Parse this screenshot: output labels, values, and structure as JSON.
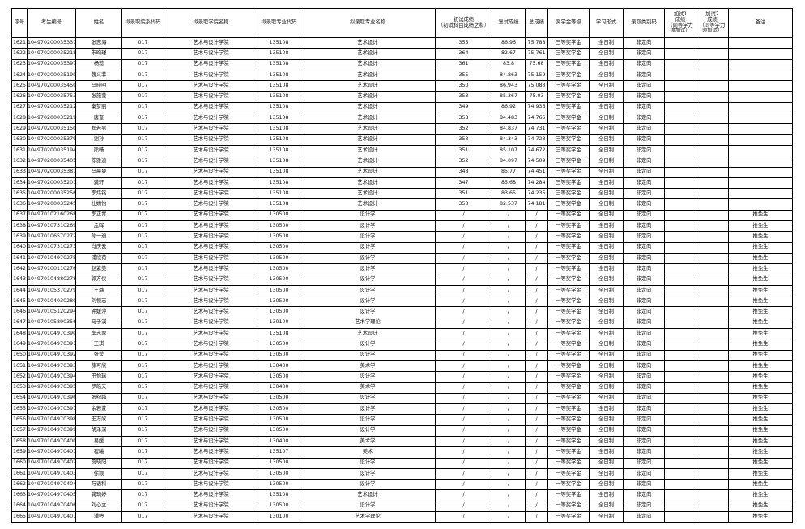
{
  "headers": [
    "序号",
    "考生编号",
    "姓名",
    "拟录取院系代码",
    "拟录取学院名称",
    "拟录取专业代码",
    "拟录取专业名称",
    "初试成绩\n（初试科目成绩之和）",
    "复试成绩",
    "总成绩",
    "奖学金等级",
    "学习形式",
    "录取类别码",
    "加试1\n成绩\n（同等学力\n须加试）",
    "加试2\n成绩\n（同等学力\n须加试）",
    "备注"
  ],
  "rows": [
    [
      "1621",
      "104970200035331",
      "张志海",
      "017",
      "艺术与设计学院",
      "135108",
      "艺术设计",
      "355",
      "86.96",
      "75.788",
      "三等奖学金",
      "全日制",
      "非定向",
      "",
      "",
      ""
    ],
    [
      "1622",
      "104970200035218",
      "朱昀瑾",
      "017",
      "艺术与设计学院",
      "135108",
      "艺术设计",
      "364",
      "82.67",
      "75.761",
      "三等奖学金",
      "全日制",
      "非定向",
      "",
      "",
      ""
    ],
    [
      "1623",
      "104970200035397",
      "杨蕊",
      "017",
      "艺术与设计学院",
      "135108",
      "艺术设计",
      "361",
      "83.8",
      "75.68",
      "三等奖学金",
      "全日制",
      "非定向",
      "",
      "",
      ""
    ],
    [
      "1624",
      "104970200035190",
      "魏义菲",
      "017",
      "艺术与设计学院",
      "135108",
      "艺术设计",
      "355",
      "84.863",
      "75.159",
      "三等奖学金",
      "全日制",
      "非定向",
      "",
      "",
      ""
    ],
    [
      "1625",
      "104970200035450",
      "马晓明",
      "017",
      "艺术与设计学院",
      "135108",
      "艺术设计",
      "350",
      "86.943",
      "75.083",
      "三等奖学金",
      "全日制",
      "非定向",
      "",
      "",
      ""
    ],
    [
      "1626",
      "104970200035753",
      "张施莹",
      "017",
      "艺术与设计学院",
      "135108",
      "艺术设计",
      "353",
      "85.367",
      "75.03",
      "三等奖学金",
      "全日制",
      "非定向",
      "",
      "",
      ""
    ],
    [
      "1627",
      "104970200035212",
      "秦梦丽",
      "017",
      "艺术与设计学院",
      "135108",
      "艺术设计",
      "349",
      "86.92",
      "74.936",
      "三等奖学金",
      "全日制",
      "非定向",
      "",
      "",
      ""
    ],
    [
      "1628",
      "104970200035219",
      "唐奎",
      "017",
      "艺术与设计学院",
      "135108",
      "艺术设计",
      "353",
      "84.483",
      "74.765",
      "三等奖学金",
      "全日制",
      "非定向",
      "",
      "",
      ""
    ],
    [
      "1629",
      "104970200035150",
      "郑若男",
      "017",
      "艺术与设计学院",
      "135108",
      "艺术设计",
      "352",
      "84.837",
      "74.731",
      "三等奖学金",
      "全日制",
      "非定向",
      "",
      "",
      ""
    ],
    [
      "1630",
      "104970200035379",
      "谢孙",
      "017",
      "艺术与设计学院",
      "135108",
      "艺术设计",
      "353",
      "84.343",
      "74.723",
      "三等奖学金",
      "全日制",
      "非定向",
      "",
      "",
      ""
    ],
    [
      "1631",
      "104970200035194",
      "熊畅",
      "017",
      "艺术与设计学院",
      "135108",
      "艺术设计",
      "351",
      "85.107",
      "74.672",
      "三等奖学金",
      "全日制",
      "非定向",
      "",
      "",
      ""
    ],
    [
      "1632",
      "104970200035405",
      "陈雅迪",
      "017",
      "艺术与设计学院",
      "135108",
      "艺术设计",
      "352",
      "84.097",
      "74.509",
      "三等奖学金",
      "全日制",
      "非定向",
      "",
      "",
      ""
    ],
    [
      "1633",
      "104970200035381",
      "马晨爽",
      "017",
      "艺术与设计学院",
      "135108",
      "艺术设计",
      "348",
      "85.77",
      "74.451",
      "三等奖学金",
      "全日制",
      "非定向",
      "",
      "",
      ""
    ],
    [
      "1634",
      "104970200035201",
      "龚轩",
      "017",
      "艺术与设计学院",
      "135108",
      "艺术设计",
      "347",
      "85.68",
      "74.284",
      "三等奖学金",
      "全日制",
      "非定向",
      "",
      "",
      ""
    ],
    [
      "1635",
      "104970200035256",
      "李炜铭",
      "017",
      "艺术与设计学院",
      "135108",
      "艺术设计",
      "351",
      "83.65",
      "74.235",
      "三等奖学金",
      "全日制",
      "非定向",
      "",
      "",
      ""
    ],
    [
      "1636",
      "104970200035245",
      "杜婧怡",
      "017",
      "艺术与设计学院",
      "135108",
      "艺术设计",
      "353",
      "82.537",
      "74.181",
      "三等奖学金",
      "全日制",
      "非定向",
      "",
      "",
      ""
    ],
    [
      "1637",
      "104970102160268",
      "李正青",
      "017",
      "艺术与设计学院",
      "130500",
      "设计学",
      "/",
      "/",
      "/",
      "一等奖学金",
      "全日制",
      "非定向",
      "",
      "",
      "推免生"
    ],
    [
      "1638",
      "104970107310269",
      "孟晖",
      "017",
      "艺术与设计学院",
      "130500",
      "设计学",
      "/",
      "/",
      "/",
      "一等奖学金",
      "全日制",
      "非定向",
      "",
      "",
      "推免生"
    ],
    [
      "1639",
      "104970106570272",
      "孙一迪",
      "017",
      "艺术与设计学院",
      "130500",
      "设计学",
      "/",
      "/",
      "/",
      "一等奖学金",
      "全日制",
      "非定向",
      "",
      "",
      "推免生"
    ],
    [
      "1640",
      "104970107310273",
      "肖庆云",
      "017",
      "艺术与设计学院",
      "130500",
      "设计学",
      "/",
      "/",
      "/",
      "一等奖学金",
      "全日制",
      "非定向",
      "",
      "",
      "推免生"
    ],
    [
      "1641",
      "104970104970275",
      "浦欣荷",
      "017",
      "艺术与设计学院",
      "130500",
      "设计学",
      "/",
      "/",
      "/",
      "一等奖学金",
      "全日制",
      "非定向",
      "",
      "",
      "推免生"
    ],
    [
      "1642",
      "104970100110276",
      "赵紫美",
      "017",
      "艺术与设计学院",
      "130500",
      "设计学",
      "/",
      "/",
      "/",
      "一等奖学金",
      "全日制",
      "非定向",
      "",
      "",
      "推免生"
    ],
    [
      "1643",
      "104970104880278",
      "郭方仪",
      "017",
      "艺术与设计学院",
      "130500",
      "设计学",
      "/",
      "/",
      "/",
      "一等奖学金",
      "全日制",
      "非定向",
      "",
      "",
      "推免生"
    ],
    [
      "1644",
      "104970105370279",
      "王璐",
      "017",
      "艺术与设计学院",
      "130500",
      "设计学",
      "/",
      "/",
      "/",
      "一等奖学金",
      "全日制",
      "非定向",
      "",
      "",
      "推免生"
    ],
    [
      "1645",
      "104970104030280",
      "刘恒志",
      "017",
      "艺术与设计学院",
      "130500",
      "设计学",
      "/",
      "/",
      "/",
      "一等奖学金",
      "全日制",
      "非定向",
      "",
      "",
      "推免生"
    ],
    [
      "1646",
      "104970105120294",
      "钟媛萍",
      "017",
      "艺术与设计学院",
      "130500",
      "设计学",
      "/",
      "/",
      "/",
      "一等奖学金",
      "全日制",
      "非定向",
      "",
      "",
      "推免生"
    ],
    [
      "1647",
      "104970105890356",
      "马子淇",
      "017",
      "艺术与设计学院",
      "130100",
      "艺术学理论",
      "/",
      "/",
      "/",
      "一等奖学金",
      "全日制",
      "非定向",
      "",
      "",
      "推免生"
    ],
    [
      "1648",
      "104970104970390",
      "李志翠",
      "017",
      "艺术与设计学院",
      "135108",
      "艺术设计",
      "/",
      "/",
      "/",
      "一等奖学金",
      "全日制",
      "非定向",
      "",
      "",
      "推免生"
    ],
    [
      "1649",
      "104970104970391",
      "王琪",
      "017",
      "艺术与设计学院",
      "130500",
      "设计学",
      "/",
      "/",
      "/",
      "一等奖学金",
      "全日制",
      "非定向",
      "",
      "",
      "推免生"
    ],
    [
      "1650",
      "104970104970392",
      "张莹",
      "017",
      "艺术与设计学院",
      "130500",
      "设计学",
      "/",
      "/",
      "/",
      "一等奖学金",
      "全日制",
      "非定向",
      "",
      "",
      "推免生"
    ],
    [
      "1651",
      "104970104970393",
      "薛可欣",
      "017",
      "艺术与设计学院",
      "130400",
      "美术学",
      "/",
      "/",
      "/",
      "一等奖学金",
      "全日制",
      "非定向",
      "",
      "",
      "推免生"
    ],
    [
      "1652",
      "104970104970394",
      "田怡瑶",
      "017",
      "艺术与设计学院",
      "130500",
      "设计学",
      "/",
      "/",
      "/",
      "一等奖学金",
      "全日制",
      "非定向",
      "",
      "",
      "推免生"
    ],
    [
      "1653",
      "104970104970395",
      "罗皓天",
      "017",
      "艺术与设计学院",
      "130400",
      "美术学",
      "/",
      "/",
      "/",
      "一等奖学金",
      "全日制",
      "非定向",
      "",
      "",
      "推免生"
    ],
    [
      "1654",
      "104970104970396",
      "张纪越",
      "017",
      "艺术与设计学院",
      "130500",
      "设计学",
      "/",
      "/",
      "/",
      "一等奖学金",
      "全日制",
      "非定向",
      "",
      "",
      "推免生"
    ],
    [
      "1655",
      "104970104970397",
      "余若萱",
      "017",
      "艺术与设计学院",
      "130500",
      "设计学",
      "/",
      "/",
      "/",
      "一等奖学金",
      "全日制",
      "非定向",
      "",
      "",
      "推免生"
    ],
    [
      "1656",
      "104970104970398",
      "王万欣",
      "017",
      "艺术与设计学院",
      "130500",
      "设计学",
      "/",
      "/",
      "/",
      "一等奖学金",
      "全日制",
      "非定向",
      "",
      "",
      "推免生"
    ],
    [
      "1657",
      "104970104970399",
      "胡泽深",
      "017",
      "艺术与设计学院",
      "130500",
      "设计学",
      "/",
      "/",
      "/",
      "一等奖学金",
      "全日制",
      "非定向",
      "",
      "",
      "推免生"
    ],
    [
      "1658",
      "104970104970400",
      "易媛",
      "017",
      "艺术与设计学院",
      "130400",
      "美术学",
      "/",
      "/",
      "/",
      "一等奖学金",
      "全日制",
      "非定向",
      "",
      "",
      "推免生"
    ],
    [
      "1659",
      "104970104970401",
      "程曦",
      "017",
      "艺术与设计学院",
      "135107",
      "美术",
      "/",
      "/",
      "/",
      "一等奖学金",
      "全日制",
      "非定向",
      "",
      "",
      "推免生"
    ],
    [
      "1660",
      "104970104970402",
      "詹晓阳",
      "017",
      "艺术与设计学院",
      "130500",
      "设计学",
      "/",
      "/",
      "/",
      "一等奖学金",
      "全日制",
      "非定向",
      "",
      "",
      "推免生"
    ],
    [
      "1661",
      "104970104970403",
      "徐颖",
      "017",
      "艺术与设计学院",
      "130500",
      "设计学",
      "/",
      "/",
      "/",
      "一等奖学金",
      "全日制",
      "非定向",
      "",
      "",
      "推免生"
    ],
    [
      "1662",
      "104970104970404",
      "万语科",
      "017",
      "艺术与设计学院",
      "130500",
      "设计学",
      "/",
      "/",
      "/",
      "一等奖学金",
      "全日制",
      "非定向",
      "",
      "",
      "推免生"
    ],
    [
      "1663",
      "104970104970405",
      "龚琦婷",
      "017",
      "艺术与设计学院",
      "135108",
      "艺术设计",
      "/",
      "/",
      "/",
      "一等奖学金",
      "全日制",
      "非定向",
      "",
      "",
      "推免生"
    ],
    [
      "1664",
      "104970104970406",
      "刘心立",
      "017",
      "艺术与设计学院",
      "130500",
      "设计学",
      "/",
      "/",
      "/",
      "一等奖学金",
      "全日制",
      "非定向",
      "",
      "",
      "推免生"
    ],
    [
      "1665",
      "104970104970407",
      "潘婷",
      "017",
      "艺术与设计学院",
      "130100",
      "艺术学理论",
      "/",
      "/",
      "/",
      "一等奖学金",
      "全日制",
      "非定向",
      "",
      "",
      "推免生"
    ]
  ]
}
